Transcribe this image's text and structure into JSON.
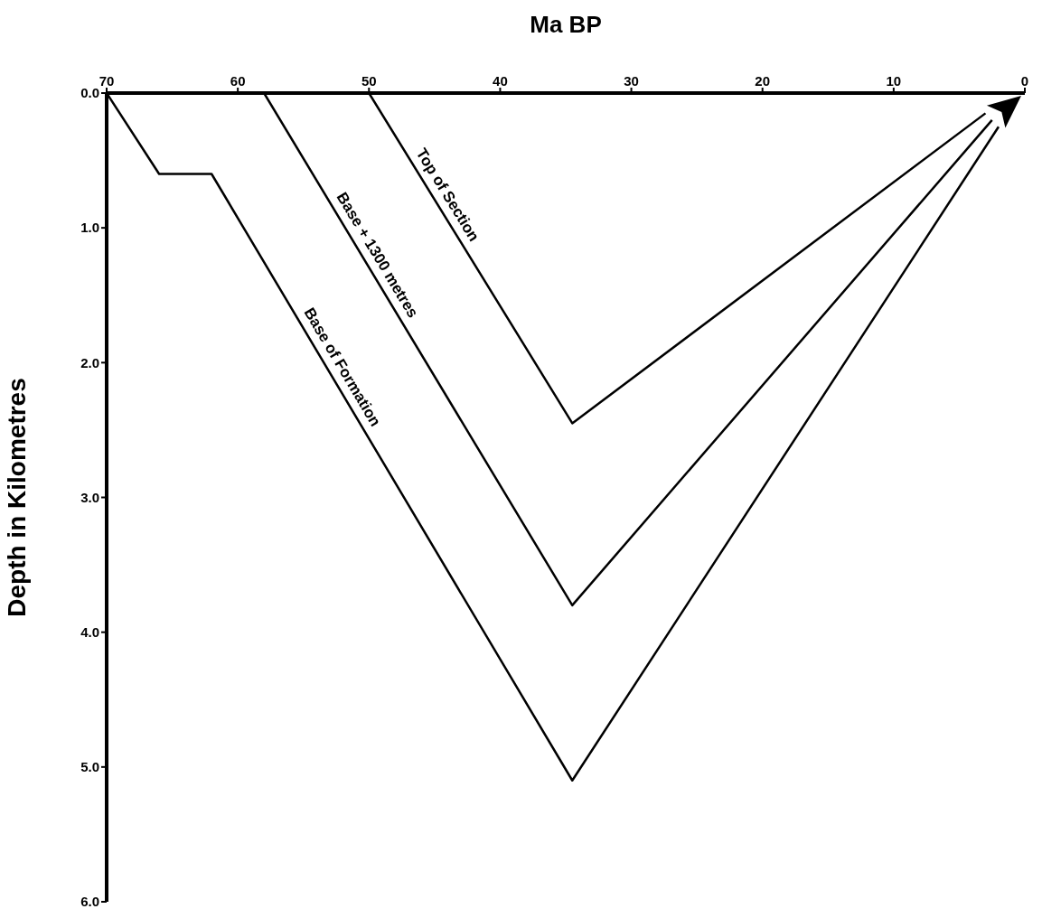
{
  "chart_data": {
    "type": "line",
    "xlabel": "Ma BP",
    "ylabel": "Depth in Kilometres",
    "xlim": [
      70,
      0
    ],
    "xticks": [
      70,
      60,
      50,
      40,
      30,
      20,
      10,
      0
    ],
    "ylim": [
      6,
      0
    ],
    "yticks": [
      {
        "value": 0,
        "label": "0.0"
      },
      {
        "value": 1,
        "label": "1.0"
      },
      {
        "value": 2,
        "label": "2.0"
      },
      {
        "value": 3,
        "label": "3.0"
      },
      {
        "value": 4,
        "label": "4.0"
      },
      {
        "value": 5,
        "label": "5.0"
      },
      {
        "value": 6,
        "label": "6.0"
      }
    ],
    "line_style": "solid",
    "series": [
      {
        "name": "Base of Formation",
        "color": "#000000",
        "x": [
          70,
          66,
          62,
          34.5,
          2
        ],
        "values": [
          0,
          0.6,
          0.6,
          5.1,
          0.25
        ]
      },
      {
        "name": "Base + 1300 metres",
        "color": "#000000",
        "x": [
          58,
          34.5,
          2.5
        ],
        "values": [
          0,
          3.8,
          0.2
        ]
      },
      {
        "name": "Top of Section",
        "color": "#000000",
        "x": [
          50,
          34.5,
          3
        ],
        "values": [
          0,
          2.45,
          0.15
        ]
      }
    ]
  }
}
